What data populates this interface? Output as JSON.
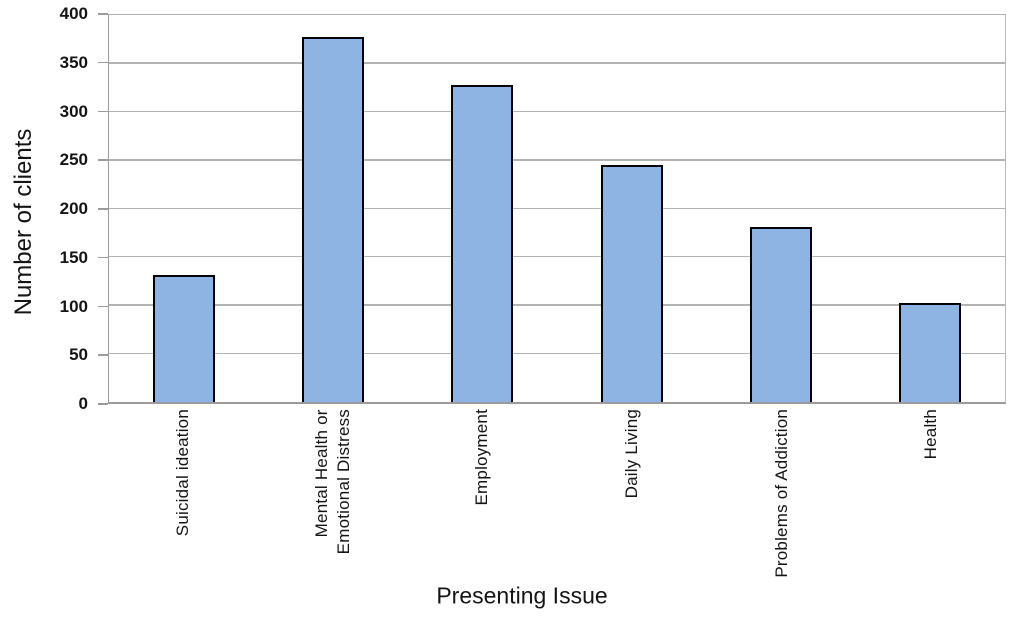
{
  "chart_data": {
    "type": "bar",
    "title": "",
    "categories": [
      "Suicidal ideation",
      "Mental Health or\nEmotional Distress",
      "Employment",
      "Daily Living",
      "Problems of Addiction",
      "Health"
    ],
    "values": [
      131,
      377,
      328,
      245,
      181,
      102
    ],
    "xlabel": "Presenting Issue",
    "ylabel": "Number of clients",
    "ylim": [
      0,
      400
    ],
    "yticks": [
      0,
      50,
      100,
      150,
      200,
      250,
      300,
      350,
      400
    ],
    "grid": "horizontal",
    "legend_position": "none",
    "bar_fill_color": "#8DB4E2",
    "bar_border_color": "#000000",
    "gridline_color": "#B3B3B3",
    "axis_line_color": "#9B9B9B",
    "text_color": "#141414",
    "background_color": "#FFFFFF"
  }
}
